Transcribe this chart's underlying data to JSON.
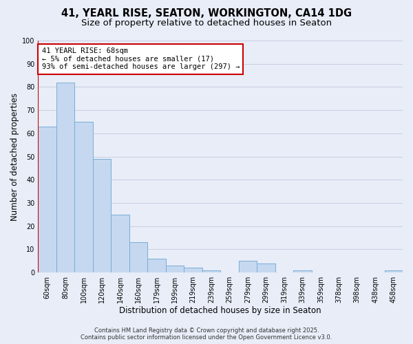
{
  "title_line1": "41, YEARL RISE, SEATON, WORKINGTON, CA14 1DG",
  "title_line2": "Size of property relative to detached houses in Seaton",
  "categories": [
    "60sqm",
    "80sqm",
    "100sqm",
    "120sqm",
    "140sqm",
    "160sqm",
    "179sqm",
    "199sqm",
    "219sqm",
    "239sqm",
    "259sqm",
    "279sqm",
    "299sqm",
    "319sqm",
    "339sqm",
    "359sqm",
    "378sqm",
    "398sqm",
    "438sqm",
    "458sqm"
  ],
  "values": [
    63,
    82,
    65,
    49,
    25,
    13,
    6,
    3,
    2,
    1,
    0,
    5,
    4,
    0,
    1,
    0,
    0,
    0,
    0,
    1
  ],
  "bar_color": "#c5d8f0",
  "bar_edge_color": "#7aadd4",
  "bar_linewidth": 0.7,
  "vline_color": "#cc0000",
  "xlabel": "Distribution of detached houses by size in Seaton",
  "ylabel": "Number of detached properties",
  "ylim": [
    0,
    100
  ],
  "yticks": [
    0,
    10,
    20,
    30,
    40,
    50,
    60,
    70,
    80,
    90,
    100
  ],
  "grid_color": "#c8cfe0",
  "background_color": "#e8edf8",
  "annotation_title": "41 YEARL RISE: 68sqm",
  "annotation_line1": "← 5% of detached houses are smaller (17)",
  "annotation_line2": "93% of semi-detached houses are larger (297) →",
  "annotation_box_facecolor": "#ffffff",
  "annotation_border_color": "#cc0000",
  "footer_line1": "Contains HM Land Registry data © Crown copyright and database right 2025.",
  "footer_line2": "Contains public sector information licensed under the Open Government Licence v3.0.",
  "title_fontsize": 10.5,
  "subtitle_fontsize": 9.5,
  "xlabel_fontsize": 8.5,
  "ylabel_fontsize": 8.5,
  "tick_fontsize": 7,
  "footer_fontsize": 6,
  "annotation_fontsize": 7.5
}
